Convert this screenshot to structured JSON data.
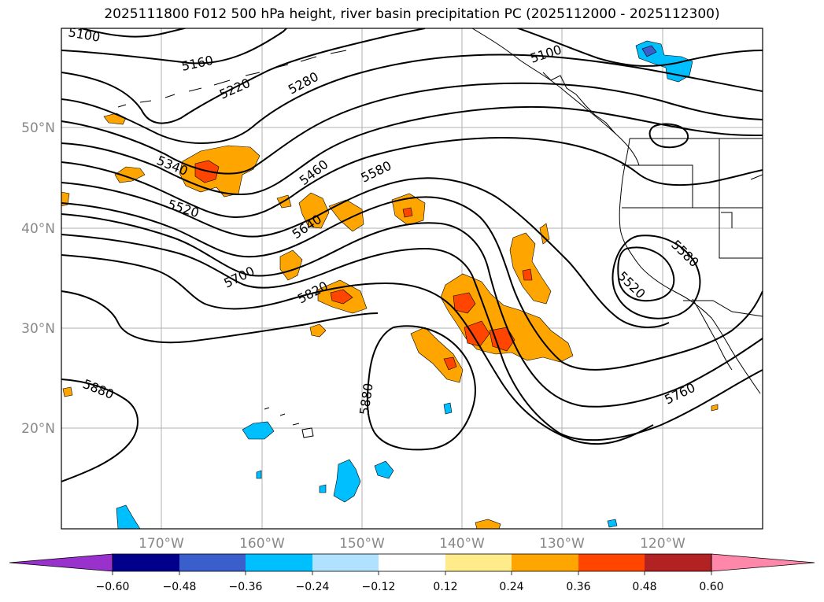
{
  "title": "2025111800 F012 500 hPa height, river basin precipitation PC (2025112000 - 2025112300)",
  "axes": {
    "lat_labels": [
      "50°N",
      "40°N",
      "30°N",
      "20°N"
    ],
    "lon_labels": [
      "170°W",
      "160°W",
      "150°W",
      "140°W",
      "130°W",
      "120°W"
    ]
  },
  "contour_labels": [
    "5100",
    "5160",
    "5220",
    "5280",
    "5100",
    "5340",
    "5460",
    "5580",
    "5520",
    "5640",
    "5700",
    "5820",
    "5580",
    "5520",
    "5880",
    "5880",
    "5760"
  ],
  "colorbar": {
    "ticks": [
      "−0.60",
      "−0.48",
      "−0.36",
      "−0.24",
      "−0.12",
      "0.12",
      "0.24",
      "0.36",
      "0.48",
      "0.60"
    ],
    "colors": [
      "#9932cc",
      "#00008b",
      "#3a5fcd",
      "#00bfff",
      "#b0e2ff",
      "#ffffff",
      "#ffeb8a",
      "#ffa500",
      "#ff4500",
      "#b22222",
      "#ff88aa"
    ]
  },
  "palette": {
    "contour": "#000000",
    "grid": "#b0b0b0",
    "pos1": "#ffa500",
    "pos2": "#ff4500",
    "neg1": "#00bfff",
    "neg2": "#3a5fcd"
  }
}
